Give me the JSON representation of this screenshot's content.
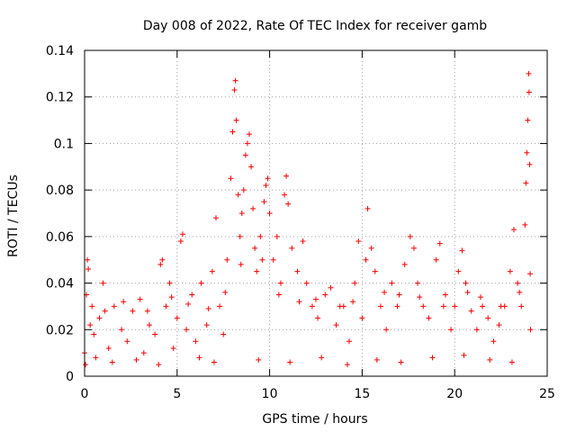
{
  "chart_data": {
    "type": "scatter",
    "title": "Day 008 of 2022, Rate Of TEC Index for receiver gamb",
    "xlabel": "GPS time / hours",
    "ylabel": "ROTI / TECUs",
    "xlim": [
      0,
      25
    ],
    "ylim": [
      0,
      0.14
    ],
    "xticks": [
      0,
      5,
      10,
      15,
      20,
      25
    ],
    "xtick_labels": [
      "0",
      "5",
      "10",
      "15",
      "20",
      "25"
    ],
    "yticks": [
      0,
      0.02,
      0.04,
      0.06,
      0.08,
      0.1,
      0.12,
      0.14
    ],
    "ytick_labels": [
      "0",
      "0.02",
      "0.04",
      "0.06",
      "0.08",
      "0.1",
      "0.12",
      "0.14"
    ],
    "grid": true,
    "marker": "+",
    "color": "#ff0000",
    "series": [
      {
        "name": "ROTI",
        "points": [
          [
            0.0,
            0.01
          ],
          [
            0.1,
            0.035
          ],
          [
            0.15,
            0.05
          ],
          [
            0.2,
            0.046
          ],
          [
            0.3,
            0.022
          ],
          [
            0.5,
            0.018
          ],
          [
            0.8,
            0.025
          ],
          [
            1.0,
            0.04
          ],
          [
            1.3,
            0.012
          ],
          [
            1.6,
            0.03
          ],
          [
            2.0,
            0.02
          ],
          [
            2.3,
            0.015
          ],
          [
            2.6,
            0.028
          ],
          [
            3.0,
            0.033
          ],
          [
            3.2,
            0.01
          ],
          [
            3.5,
            0.022
          ],
          [
            3.8,
            0.018
          ],
          [
            4.1,
            0.048
          ],
          [
            4.2,
            0.05
          ],
          [
            4.4,
            0.03
          ],
          [
            4.6,
            0.04
          ],
          [
            4.8,
            0.012
          ],
          [
            5.0,
            0.025
          ],
          [
            5.2,
            0.058
          ],
          [
            5.3,
            0.061
          ],
          [
            5.5,
            0.02
          ],
          [
            5.8,
            0.035
          ],
          [
            6.0,
            0.015
          ],
          [
            6.3,
            0.04
          ],
          [
            6.6,
            0.022
          ],
          [
            6.9,
            0.045
          ],
          [
            7.1,
            0.068
          ],
          [
            7.3,
            0.03
          ],
          [
            7.5,
            0.018
          ],
          [
            7.7,
            0.05
          ],
          [
            7.9,
            0.085
          ],
          [
            8.0,
            0.105
          ],
          [
            8.1,
            0.123
          ],
          [
            8.15,
            0.127
          ],
          [
            8.2,
            0.11
          ],
          [
            8.3,
            0.078
          ],
          [
            8.4,
            0.06
          ],
          [
            8.5,
            0.07
          ],
          [
            8.6,
            0.08
          ],
          [
            8.7,
            0.095
          ],
          [
            8.8,
            0.1
          ],
          [
            8.9,
            0.104
          ],
          [
            9.0,
            0.09
          ],
          [
            9.1,
            0.072
          ],
          [
            9.2,
            0.055
          ],
          [
            9.3,
            0.045
          ],
          [
            9.5,
            0.06
          ],
          [
            9.7,
            0.075
          ],
          [
            9.8,
            0.082
          ],
          [
            9.9,
            0.085
          ],
          [
            10.0,
            0.07
          ],
          [
            10.2,
            0.05
          ],
          [
            10.4,
            0.06
          ],
          [
            10.6,
            0.04
          ],
          [
            10.8,
            0.078
          ],
          [
            10.9,
            0.086
          ],
          [
            11.0,
            0.074
          ],
          [
            11.2,
            0.055
          ],
          [
            11.5,
            0.045
          ],
          [
            11.8,
            0.058
          ],
          [
            12.0,
            0.04
          ],
          [
            12.3,
            0.03
          ],
          [
            12.6,
            0.025
          ],
          [
            13.0,
            0.035
          ],
          [
            13.3,
            0.038
          ],
          [
            13.6,
            0.022
          ],
          [
            14.0,
            0.03
          ],
          [
            14.3,
            0.015
          ],
          [
            14.6,
            0.04
          ],
          [
            14.8,
            0.058
          ],
          [
            15.0,
            0.025
          ],
          [
            15.2,
            0.05
          ],
          [
            15.3,
            0.072
          ],
          [
            15.5,
            0.055
          ],
          [
            15.7,
            0.045
          ],
          [
            16.0,
            0.03
          ],
          [
            16.3,
            0.02
          ],
          [
            16.6,
            0.04
          ],
          [
            17.0,
            0.035
          ],
          [
            17.3,
            0.048
          ],
          [
            17.6,
            0.06
          ],
          [
            17.8,
            0.055
          ],
          [
            18.0,
            0.04
          ],
          [
            18.3,
            0.03
          ],
          [
            18.6,
            0.025
          ],
          [
            19.0,
            0.05
          ],
          [
            19.2,
            0.057
          ],
          [
            19.5,
            0.035
          ],
          [
            19.8,
            0.02
          ],
          [
            20.0,
            0.03
          ],
          [
            20.2,
            0.045
          ],
          [
            20.4,
            0.054
          ],
          [
            20.6,
            0.04
          ],
          [
            20.9,
            0.028
          ],
          [
            21.2,
            0.02
          ],
          [
            21.5,
            0.03
          ],
          [
            21.8,
            0.025
          ],
          [
            22.1,
            0.015
          ],
          [
            22.4,
            0.022
          ],
          [
            22.7,
            0.03
          ],
          [
            23.0,
            0.045
          ],
          [
            23.2,
            0.063
          ],
          [
            23.4,
            0.04
          ],
          [
            23.6,
            0.03
          ],
          [
            23.8,
            0.065
          ],
          [
            23.85,
            0.083
          ],
          [
            23.9,
            0.096
          ],
          [
            23.95,
            0.11
          ],
          [
            24.0,
            0.13
          ],
          [
            24.02,
            0.122
          ],
          [
            24.05,
            0.091
          ],
          [
            24.08,
            0.044
          ],
          [
            24.1,
            0.02
          ],
          [
            0.05,
            0.005
          ],
          [
            0.6,
            0.008
          ],
          [
            1.5,
            0.006
          ],
          [
            2.8,
            0.007
          ],
          [
            4.0,
            0.005
          ],
          [
            6.2,
            0.008
          ],
          [
            7.0,
            0.006
          ],
          [
            9.4,
            0.007
          ],
          [
            11.1,
            0.006
          ],
          [
            12.8,
            0.008
          ],
          [
            14.2,
            0.005
          ],
          [
            15.8,
            0.007
          ],
          [
            17.1,
            0.006
          ],
          [
            18.8,
            0.008
          ],
          [
            20.5,
            0.009
          ],
          [
            21.9,
            0.007
          ],
          [
            23.1,
            0.006
          ],
          [
            0.4,
            0.03
          ],
          [
            1.1,
            0.028
          ],
          [
            2.1,
            0.032
          ],
          [
            3.4,
            0.028
          ],
          [
            4.7,
            0.034
          ],
          [
            5.6,
            0.031
          ],
          [
            6.7,
            0.029
          ],
          [
            7.6,
            0.036
          ],
          [
            8.45,
            0.048
          ],
          [
            9.6,
            0.05
          ],
          [
            10.5,
            0.035
          ],
          [
            11.6,
            0.032
          ],
          [
            12.5,
            0.033
          ],
          [
            13.8,
            0.03
          ],
          [
            14.5,
            0.032
          ],
          [
            16.2,
            0.036
          ],
          [
            16.9,
            0.03
          ],
          [
            18.1,
            0.034
          ],
          [
            19.4,
            0.03
          ],
          [
            20.7,
            0.036
          ],
          [
            21.4,
            0.034
          ],
          [
            22.5,
            0.03
          ],
          [
            23.5,
            0.036
          ]
        ]
      }
    ]
  }
}
